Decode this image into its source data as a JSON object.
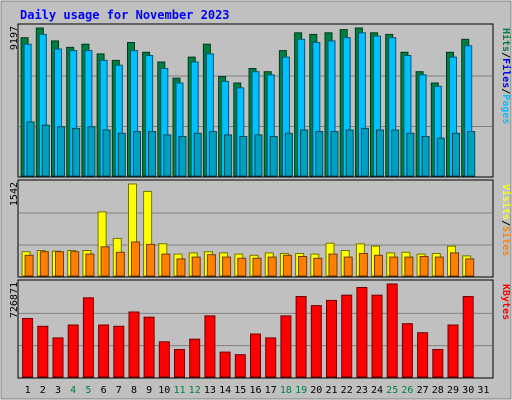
{
  "chart_data": {
    "type": "bar",
    "title": "Daily usage for November 2023",
    "categories": [
      "1",
      "2",
      "3",
      "4",
      "5",
      "6",
      "7",
      "8",
      "9",
      "10",
      "11",
      "12",
      "13",
      "14",
      "15",
      "16",
      "17",
      "18",
      "19",
      "20",
      "21",
      "22",
      "23",
      "24",
      "25",
      "26",
      "27",
      "28",
      "29",
      "30",
      "31"
    ],
    "weekend_days": [
      "4",
      "5",
      "11",
      "12",
      "18",
      "19",
      "25",
      "26"
    ],
    "panels": [
      {
        "name": "hits-files-pages",
        "ymax": 9197,
        "ymax_label": "9197",
        "side_labels": [
          "Pages",
          "Files",
          "Hits"
        ],
        "series": [
          {
            "name": "Hits",
            "color": "#008040",
            "values": [
              8600,
              9197,
              8400,
              8000,
              8200,
              7600,
              7200,
              8300,
              7700,
              7100,
              6100,
              7400,
              8200,
              6200,
              5800,
              6700,
              6500,
              7800,
              8900,
              8800,
              8900,
              9100,
              9197,
              8900,
              8800,
              7700,
              6500,
              5800,
              7700,
              8500
            ]
          },
          {
            "name": "Files",
            "color": "#00c0ff",
            "values": [
              8200,
              8800,
              7900,
              7800,
              7800,
              7200,
              6900,
              7800,
              7500,
              6700,
              5800,
              7100,
              7600,
              5900,
              5500,
              6500,
              6300,
              7400,
              8500,
              8300,
              8400,
              8600,
              8900,
              8700,
              8600,
              7500,
              6300,
              5600,
              7400,
              8100
            ]
          },
          {
            "name": "Pages",
            "color": "#00a0c0",
            "values": [
              3400,
              3200,
              3100,
              3000,
              3100,
              2900,
              2700,
              2800,
              2800,
              2600,
              2500,
              2700,
              2800,
              2600,
              2500,
              2600,
              2500,
              2700,
              2900,
              2800,
              2800,
              2900,
              3000,
              2900,
              2900,
              2700,
              2500,
              2400,
              2700,
              2800
            ]
          }
        ]
      },
      {
        "name": "visits-sites",
        "ymax": 1542,
        "ymax_label": "1542",
        "side_labels": [
          "Sites",
          "Visits"
        ],
        "series": [
          {
            "name": "Visits",
            "color": "#ffff00",
            "values": [
              420,
              440,
              430,
              440,
              440,
              1080,
              640,
              1542,
              1420,
              550,
              380,
              400,
              420,
              400,
              380,
              360,
              400,
              390,
              390,
              380,
              560,
              440,
              550,
              510,
              400,
              410,
              380,
              390,
              510,
              350
            ]
          },
          {
            "name": "Sites",
            "color": "#ff8000",
            "values": [
              360,
              420,
              420,
              420,
              380,
              500,
              410,
              580,
              540,
              380,
              300,
              330,
              370,
              330,
              310,
              310,
              330,
              360,
              340,
              310,
              380,
              330,
              390,
              360,
              330,
              330,
              340,
              330,
              400,
              300
            ]
          }
        ]
      },
      {
        "name": "kbytes",
        "ymax": 726871,
        "ymax_label": "726871",
        "side_labels": [
          "KBytes"
        ],
        "series": [
          {
            "name": "KBytes",
            "color": "#ff0000",
            "values": [
              460000,
              400000,
              310000,
              410000,
              620000,
              410000,
              400000,
              510000,
              470000,
              280000,
              220000,
              300000,
              480000,
              200000,
              180000,
              340000,
              310000,
              480000,
              630000,
              560000,
              600000,
              640000,
              700000,
              640000,
              726871,
              420000,
              350000,
              220000,
              410000,
              630000
            ]
          }
        ]
      }
    ]
  },
  "colors": {
    "frame_bg": "#c0c0c0",
    "plot_bg": "#c0c0c0",
    "title": "#0000ff",
    "pages_label": "#00c0ff",
    "files_label": "#0000ff",
    "hits_label": "#008040",
    "sites_label": "#ff8000",
    "visits_label": "#ffff00",
    "kbytes_label": "#ff0000",
    "weekday_label": "#000000",
    "weekend_label": "#008040"
  }
}
